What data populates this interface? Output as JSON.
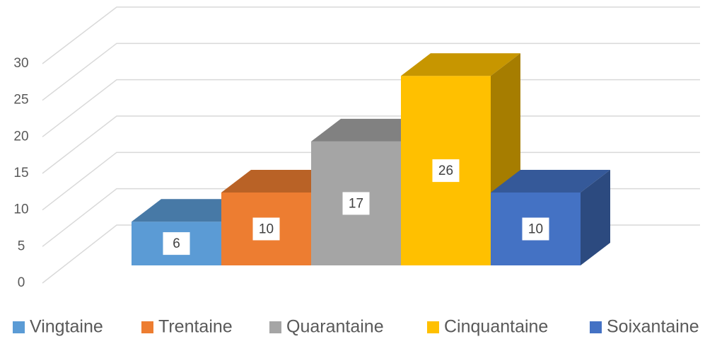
{
  "chart_data": {
    "type": "bar3d",
    "categories": [
      "Vingtaine",
      "Trentaine",
      "Quarantaine",
      "Cinquantaine",
      "Soixantaine"
    ],
    "values": [
      6,
      10,
      17,
      26,
      10
    ],
    "colors": [
      "#5b9bd5",
      "#ed7d31",
      "#a5a5a5",
      "#ffc000",
      "#4472c4"
    ],
    "ylim": [
      0,
      30
    ],
    "yticks": [
      0,
      5,
      10,
      15,
      20,
      25,
      30
    ],
    "grid": true,
    "legend": "bottom"
  }
}
